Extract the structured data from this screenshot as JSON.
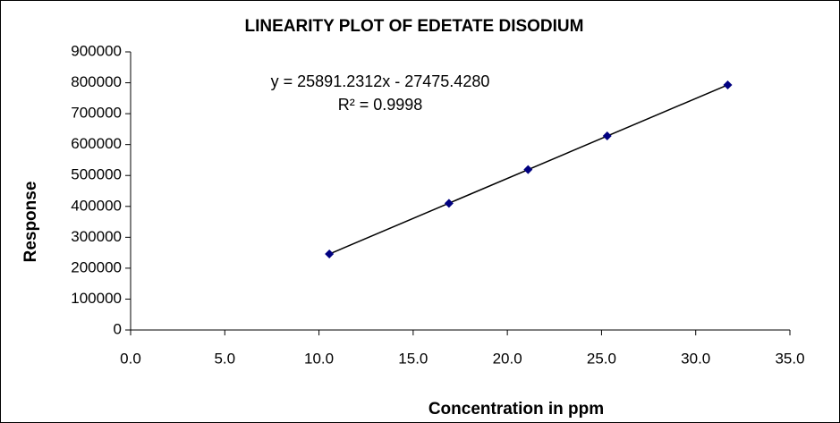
{
  "chart_data": {
    "type": "scatter",
    "title": "LINEARITY PLOT OF EDETATE DISODIUM",
    "x_label": "Concentration in ppm",
    "y_label": "Response",
    "annotations": [
      "y = 25891.2312x - 27475.4280",
      "R² = 0.9998"
    ],
    "x": [
      10.55,
      16.9,
      21.1,
      25.3,
      31.7
    ],
    "values": [
      246000,
      410000,
      519000,
      628000,
      793000
    ],
    "color": "#000080",
    "trendline": true,
    "xlim": [
      0,
      35
    ],
    "xticks": [
      {
        "value": 0,
        "label": "0.0"
      },
      {
        "value": 5,
        "label": "5.0"
      },
      {
        "value": 10,
        "label": "10.0"
      },
      {
        "value": 15,
        "label": "15.0"
      },
      {
        "value": 20,
        "label": "20.0"
      },
      {
        "value": 25,
        "label": "25.0"
      },
      {
        "value": 30,
        "label": "30.0"
      },
      {
        "value": 35,
        "label": "35.0"
      }
    ],
    "ylim": [
      0,
      900000
    ],
    "yticks": [
      0,
      100000,
      200000,
      300000,
      400000,
      500000,
      600000,
      700000,
      800000,
      900000
    ]
  }
}
